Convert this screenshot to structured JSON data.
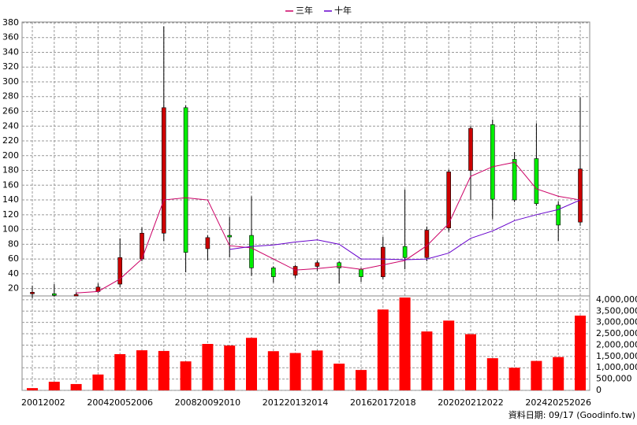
{
  "chart_data": {
    "type": "candlestick",
    "categories": [
      "2001",
      "2002",
      null,
      "2004",
      "2005",
      "2006",
      null,
      "2008",
      "2009",
      "2010",
      null,
      "2012",
      "2013",
      "2014",
      null,
      "2016",
      "2017",
      "2018",
      null,
      "2020",
      "2021",
      "2022",
      null,
      "2024",
      "2025",
      "2026"
    ],
    "candles": {
      "up_color": "#cc0000",
      "down_color": "#00ee00",
      "open": [
        15,
        13,
        12,
        16,
        26,
        60,
        95,
        265,
        74,
        92,
        92,
        48,
        38,
        50,
        55,
        46,
        36,
        77,
        62,
        102,
        180,
        242,
        195,
        196,
        133,
        110
      ],
      "high": [
        24,
        26,
        15,
        27,
        88,
        103,
        375,
        268,
        92,
        117,
        145,
        50,
        52,
        58,
        57,
        48,
        90,
        154,
        104,
        181,
        240,
        249,
        205,
        244,
        138,
        279
      ],
      "low": [
        7,
        9,
        10,
        14,
        22,
        57,
        84,
        42,
        58,
        62,
        37,
        28,
        34,
        44,
        27,
        29,
        33,
        46,
        57,
        97,
        140,
        114,
        137,
        132,
        84,
        105
      ],
      "close": [
        15,
        11,
        12,
        22,
        62,
        95,
        265,
        69,
        89,
        90,
        48,
        36,
        50,
        55,
        48,
        36,
        76,
        62,
        99,
        178,
        237,
        141,
        140,
        135,
        106,
        182
      ]
    },
    "series": [
      {
        "name": "三年",
        "color": "#cc0066",
        "values": [
          null,
          null,
          14,
          16,
          33,
          60,
          140,
          143,
          140,
          78,
          75,
          60,
          45,
          47,
          50,
          46,
          52,
          58,
          78,
          108,
          172,
          185,
          191,
          155,
          145,
          140
        ]
      },
      {
        "name": "十年",
        "color": "#6600cc",
        "values": [
          null,
          null,
          null,
          null,
          null,
          null,
          null,
          null,
          null,
          73,
          77,
          79,
          83,
          86,
          80,
          60,
          60,
          59,
          60,
          68,
          88,
          98,
          112,
          120,
          127,
          140
        ]
      }
    ],
    "ylim": [
      10,
      381
    ],
    "yticks": [
      20,
      40,
      60,
      80,
      100,
      120,
      140,
      160,
      180,
      200,
      220,
      240,
      260,
      280,
      300,
      320,
      340,
      360,
      380
    ],
    "volume": {
      "color": "#ff0000",
      "values": [
        100000,
        380000,
        280000,
        700000,
        1600000,
        1770000,
        1740000,
        1280000,
        2050000,
        1980000,
        2320000,
        1730000,
        1650000,
        1760000,
        1180000,
        900000,
        3570000,
        4100000,
        2600000,
        3080000,
        2480000,
        1420000,
        1000000,
        1300000,
        1470000,
        3300000
      ]
    },
    "y2lim": [
      0,
      4170000
    ],
    "y2ticks": [
      0,
      {
        "value": 500000,
        "label": "500,000"
      },
      {
        "value": 1000000,
        "label": "1,000,000"
      },
      {
        "value": 1500000,
        "label": "1,500,000"
      },
      {
        "value": 2000000,
        "label": "2,000,000"
      },
      {
        "value": 2500000,
        "label": "2,500,000"
      },
      {
        "value": 3000000,
        "label": "3,000,000"
      },
      {
        "value": 3500000,
        "label": "3,500,000"
      },
      {
        "value": 4000000,
        "label": "4,000,000"
      }
    ],
    "grid": true,
    "source": "資料日期: 09/17  (Goodinfo.tw)"
  }
}
